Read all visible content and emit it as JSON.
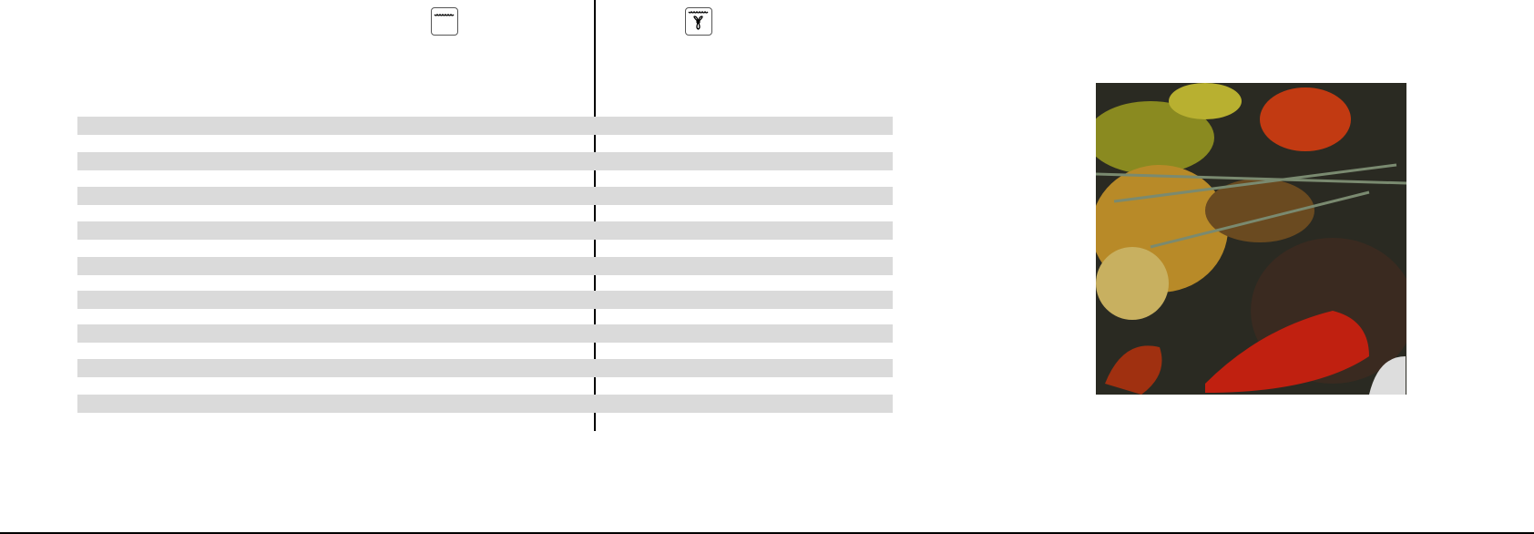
{
  "icons": {
    "left": "conventional-oven-icon",
    "right": "fan-oven-icon"
  },
  "table": {
    "row_count": 9,
    "row_color": "#dadada"
  },
  "photo": {
    "subject": "food-photo"
  }
}
